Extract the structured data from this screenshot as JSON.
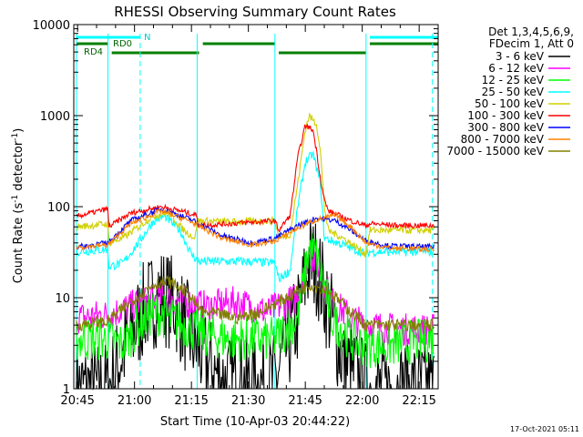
{
  "chart_data": {
    "type": "line",
    "title": "RHESSI Observing Summary Count Rates",
    "xlabel": "Start Time (10-Apr-03 20:44:22)",
    "ylabel_main": "Count Rate (s",
    "ylabel_sup1": "-1",
    "ylabel_mid": " detector",
    "ylabel_sup2": "-1",
    "ylabel_end": ")",
    "y_scale": "log",
    "ylim": [
      1,
      10000
    ],
    "xlim_minutes": [
      -1,
      95
    ],
    "x_ticks": [
      {
        "t": 0,
        "label": "20:45"
      },
      {
        "t": 15,
        "label": "21:00"
      },
      {
        "t": 30,
        "label": "21:15"
      },
      {
        "t": 45,
        "label": "21:30"
      },
      {
        "t": 60,
        "label": "21:45"
      },
      {
        "t": 75,
        "label": "22:00"
      },
      {
        "t": 90,
        "label": "22:15"
      }
    ],
    "y_ticks": [
      {
        "v": 1,
        "label": "1"
      },
      {
        "v": 10,
        "label": "10"
      },
      {
        "v": 100,
        "label": "100"
      },
      {
        "v": 1000,
        "label": "1000"
      },
      {
        "v": 10000,
        "label": "10000"
      }
    ],
    "legend": {
      "placement": "right",
      "header": [
        "Det 1,3,4,5,6,9,",
        "FDecim 1, Att 0"
      ]
    },
    "annotations": {
      "N": "N",
      "RD0": "RD0",
      "RD4": "RD4",
      "footer": "17-Oct-2021 05:11"
    },
    "flags": {
      "night": [
        {
          "start": -0.3,
          "end": 16.5
        },
        {
          "start": 77,
          "end": 95
        }
      ],
      "rd0": [
        {
          "start": -0.3,
          "end": 8
        },
        {
          "start": 33,
          "end": 52
        },
        {
          "start": 77,
          "end": 95
        }
      ],
      "rd4": [
        {
          "start": 9,
          "end": 32
        },
        {
          "start": 53,
          "end": 76
        }
      ],
      "vlines_solid": [
        -0.3,
        8,
        31.5,
        52,
        76
      ],
      "vlines_dashed": [
        16.5,
        93.5
      ]
    },
    "series": [
      {
        "name": "3 - 6 keV",
        "color": "#000000",
        "noise": 0.55,
        "points": [
          [
            -0.3,
            1
          ],
          [
            8,
            1
          ],
          [
            12,
            2.5
          ],
          [
            18,
            8
          ],
          [
            22,
            11
          ],
          [
            26,
            8
          ],
          [
            31,
            3
          ],
          [
            38,
            1.2
          ],
          [
            46,
            1.1
          ],
          [
            52,
            1.2
          ],
          [
            58,
            6
          ],
          [
            61,
            25
          ],
          [
            63,
            22
          ],
          [
            66,
            8
          ],
          [
            70,
            2
          ],
          [
            76,
            1
          ],
          [
            94,
            1
          ]
        ]
      },
      {
        "name": "6 - 12 keV",
        "color": "#ff00ff",
        "noise": 0.18,
        "points": [
          [
            -0.3,
            6
          ],
          [
            8,
            6.5
          ],
          [
            14,
            8
          ],
          [
            22,
            10
          ],
          [
            28,
            9
          ],
          [
            34,
            8
          ],
          [
            42,
            9
          ],
          [
            50,
            7
          ],
          [
            58,
            10
          ],
          [
            61,
            32
          ],
          [
            63,
            24
          ],
          [
            67,
            9
          ],
          [
            72,
            6
          ],
          [
            76,
            5
          ],
          [
            84,
            4.5
          ],
          [
            94,
            4.5
          ]
        ]
      },
      {
        "name": "12 - 25 keV",
        "color": "#00ff00",
        "noise": 0.25,
        "points": [
          [
            -0.3,
            3.5
          ],
          [
            8,
            3.5
          ],
          [
            12,
            3
          ],
          [
            16,
            5
          ],
          [
            20,
            7
          ],
          [
            24,
            6
          ],
          [
            28,
            5
          ],
          [
            33,
            4
          ],
          [
            40,
            3.5
          ],
          [
            52,
            3.5
          ],
          [
            58,
            6
          ],
          [
            61,
            35
          ],
          [
            63,
            28
          ],
          [
            67,
            6
          ],
          [
            72,
            3.5
          ],
          [
            76,
            3
          ],
          [
            82,
            3
          ],
          [
            94,
            3.5
          ]
        ]
      },
      {
        "name": "25 - 50 keV",
        "color": "#00ffff",
        "noise": 0.05,
        "points": [
          [
            -0.3,
            32
          ],
          [
            8,
            34
          ],
          [
            8.2,
            22
          ],
          [
            12,
            24
          ],
          [
            16,
            40
          ],
          [
            20,
            70
          ],
          [
            23,
            78
          ],
          [
            27,
            55
          ],
          [
            30,
            30
          ],
          [
            32,
            25
          ],
          [
            45,
            25
          ],
          [
            52,
            24
          ],
          [
            53,
            16
          ],
          [
            56,
            20
          ],
          [
            58,
            100
          ],
          [
            60,
            310
          ],
          [
            62,
            380
          ],
          [
            64,
            180
          ],
          [
            65,
            45
          ],
          [
            70,
            38
          ],
          [
            76,
            30
          ],
          [
            77,
            32
          ],
          [
            85,
            32
          ],
          [
            94,
            32
          ]
        ]
      },
      {
        "name": "50 - 100 keV",
        "color": "#d0d000",
        "noise": 0.04,
        "points": [
          [
            -0.3,
            60
          ],
          [
            8,
            65
          ],
          [
            8.2,
            40
          ],
          [
            12,
            45
          ],
          [
            16,
            60
          ],
          [
            20,
            80
          ],
          [
            24,
            85
          ],
          [
            28,
            55
          ],
          [
            31,
            45
          ],
          [
            31.5,
            70
          ],
          [
            40,
            68
          ],
          [
            52,
            70
          ],
          [
            53,
            45
          ],
          [
            56,
            50
          ],
          [
            58,
            180
          ],
          [
            60,
            700
          ],
          [
            61,
            1000
          ],
          [
            63,
            800
          ],
          [
            64,
            400
          ],
          [
            65,
            100
          ],
          [
            66,
            55
          ],
          [
            70,
            45
          ],
          [
            76,
            30
          ],
          [
            77,
            55
          ],
          [
            85,
            55
          ],
          [
            94,
            55
          ]
        ]
      },
      {
        "name": "100 - 300 keV",
        "color": "#ff0000",
        "noise": 0.03,
        "points": [
          [
            -0.3,
            78
          ],
          [
            8,
            95
          ],
          [
            8.2,
            60
          ],
          [
            14,
            85
          ],
          [
            22,
            100
          ],
          [
            28,
            88
          ],
          [
            31.5,
            80
          ],
          [
            31.7,
            62
          ],
          [
            40,
            65
          ],
          [
            52,
            70
          ],
          [
            53,
            55
          ],
          [
            56,
            80
          ],
          [
            58,
            350
          ],
          [
            60,
            780
          ],
          [
            62,
            700
          ],
          [
            63,
            400
          ],
          [
            64,
            200
          ],
          [
            65,
            120
          ],
          [
            66,
            90
          ],
          [
            72,
            70
          ],
          [
            76,
            62
          ],
          [
            77,
            65
          ],
          [
            85,
            62
          ],
          [
            94,
            62
          ]
        ]
      },
      {
        "name": "300 - 800 keV",
        "color": "#0000ff",
        "noise": 0.03,
        "points": [
          [
            -0.3,
            36
          ],
          [
            8,
            40
          ],
          [
            14,
            70
          ],
          [
            22,
            95
          ],
          [
            30,
            72
          ],
          [
            38,
            48
          ],
          [
            46,
            40
          ],
          [
            52,
            45
          ],
          [
            58,
            62
          ],
          [
            63,
            75
          ],
          [
            68,
            70
          ],
          [
            72,
            55
          ],
          [
            76,
            42
          ],
          [
            82,
            37
          ],
          [
            94,
            36
          ]
        ]
      },
      {
        "name": "800 - 7000 keV",
        "color": "#ff8000",
        "noise": 0.03,
        "points": [
          [
            -0.3,
            36
          ],
          [
            8,
            38
          ],
          [
            14,
            65
          ],
          [
            22,
            90
          ],
          [
            30,
            68
          ],
          [
            38,
            45
          ],
          [
            46,
            38
          ],
          [
            52,
            42
          ],
          [
            58,
            58
          ],
          [
            63,
            72
          ],
          [
            68,
            80
          ],
          [
            72,
            60
          ],
          [
            76,
            40
          ],
          [
            82,
            35
          ],
          [
            94,
            34
          ]
        ]
      },
      {
        "name": "7000 - 15000 keV",
        "color": "#808000",
        "noise": 0.07,
        "points": [
          [
            -0.3,
            5
          ],
          [
            8,
            5.5
          ],
          [
            14,
            9
          ],
          [
            20,
            14
          ],
          [
            24,
            15
          ],
          [
            28,
            12
          ],
          [
            33,
            7
          ],
          [
            42,
            6
          ],
          [
            48,
            7
          ],
          [
            55,
            10
          ],
          [
            61,
            14
          ],
          [
            66,
            12
          ],
          [
            72,
            7
          ],
          [
            76,
            5
          ],
          [
            82,
            5
          ],
          [
            94,
            5
          ]
        ]
      }
    ]
  }
}
